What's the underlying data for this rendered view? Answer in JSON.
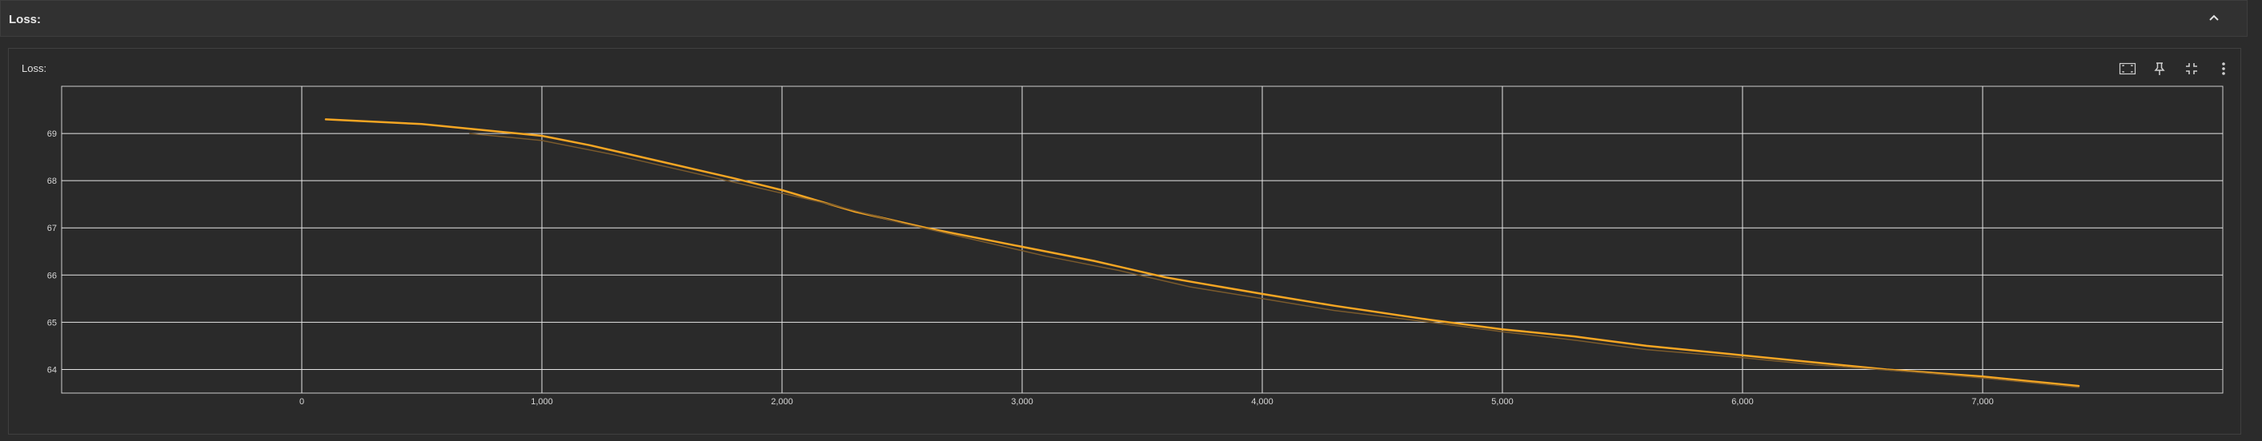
{
  "section": {
    "title": "Loss:"
  },
  "card": {
    "title": "Loss:"
  },
  "toolbar": {
    "icons": [
      "fit-to-data-icon",
      "pin-icon",
      "fullscreen-exit-icon",
      "more-vert-icon"
    ]
  },
  "colors": {
    "series_main": "#f5a623",
    "series_raw": "#7a5a2c",
    "grid": "#e6e6e6",
    "axis": "#cfcfcf"
  },
  "chart_data": {
    "type": "line",
    "title": "Loss:",
    "xlabel": "",
    "ylabel": "",
    "xlim": [
      -1000,
      8000
    ],
    "ylim": [
      63.5,
      70.0
    ],
    "x_ticks": [
      0,
      1000,
      2000,
      3000,
      4000,
      5000,
      6000,
      7000
    ],
    "x_tick_labels": [
      "0",
      "1,000",
      "2,000",
      "3,000",
      "4,000",
      "5,000",
      "6,000",
      "7,000"
    ],
    "y_ticks": [
      64,
      65,
      66,
      67,
      68,
      69
    ],
    "y_tick_labels": [
      "64",
      "65",
      "66",
      "67",
      "68",
      "69"
    ],
    "grid": true,
    "legend": "none",
    "series": [
      {
        "style": "smoothed",
        "x": [
          100,
          500,
          800,
          1000,
          1200,
          1500,
          1800,
          2000,
          2300,
          2600,
          3000,
          3300,
          3600,
          4000,
          4300,
          4700,
          5000,
          5300,
          5600,
          6000,
          6300,
          6600,
          7000,
          7200,
          7400
        ],
        "y": [
          69.3,
          69.2,
          69.05,
          68.95,
          68.75,
          68.4,
          68.05,
          67.8,
          67.35,
          67.0,
          66.6,
          66.3,
          65.95,
          65.6,
          65.35,
          65.05,
          64.85,
          64.7,
          64.5,
          64.3,
          64.15,
          64.0,
          63.85,
          63.75,
          63.65
        ]
      },
      {
        "style": "raw",
        "x": [
          700,
          1000,
          1300,
          1600,
          1900,
          2200,
          2500,
          2800,
          3100,
          3400,
          3700,
          4000,
          4300,
          4700,
          5000,
          5300,
          5600,
          6000,
          6300,
          6700,
          7000,
          7400
        ],
        "y": [
          69.0,
          68.85,
          68.55,
          68.2,
          67.85,
          67.5,
          67.1,
          66.75,
          66.4,
          66.1,
          65.75,
          65.5,
          65.25,
          65.0,
          64.8,
          64.62,
          64.42,
          64.25,
          64.1,
          63.95,
          63.82,
          63.62
        ]
      }
    ]
  }
}
